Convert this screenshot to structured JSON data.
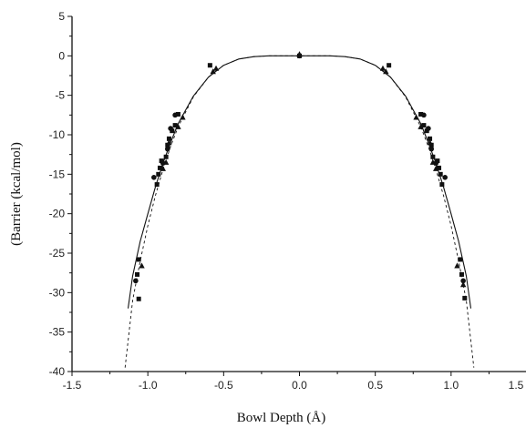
{
  "chart_data": {
    "type": "scatter",
    "title": "",
    "xlabel": "Bowl Depth (Å)",
    "ylabel": "(Barrier (kcal/mol)",
    "xlim": [
      -1.5,
      1.5
    ],
    "ylim": [
      -40,
      5
    ],
    "xticks": [
      -1.5,
      -1.0,
      -0.5,
      0.0,
      0.5,
      1.0,
      1.5
    ],
    "yticks": [
      5,
      0,
      -5,
      -10,
      -15,
      -20,
      -25,
      -30,
      -35,
      -40
    ],
    "xtick_labels": [
      "-1.5",
      "-1.0",
      "-0.5",
      "0.0",
      "0.5",
      "1.0",
      "1.5"
    ],
    "ytick_labels": [
      "5",
      "0",
      "-5",
      "-10",
      "-15",
      "-20",
      "-25",
      "-30",
      "-35",
      "-40"
    ],
    "grid": false,
    "legend": null,
    "series": [
      {
        "marker": "square",
        "points": [
          [
            -1.06,
            -30.8
          ],
          [
            -1.07,
            -27.7
          ],
          [
            -1.06,
            -25.8
          ],
          [
            -0.94,
            -16.3
          ],
          [
            -0.93,
            -15.0
          ],
          [
            -0.92,
            -14.2
          ],
          [
            -0.91,
            -13.3
          ],
          [
            -0.88,
            -12.8
          ],
          [
            -0.87,
            -11.3
          ],
          [
            -0.86,
            -10.5
          ],
          [
            -0.84,
            -9.5
          ],
          [
            -0.82,
            -8.8
          ],
          [
            -0.8,
            -7.4
          ],
          [
            -0.59,
            -1.2
          ],
          [
            0.0,
            0.0
          ],
          [
            0.59,
            -1.2
          ],
          [
            0.8,
            -7.4
          ],
          [
            0.82,
            -8.8
          ],
          [
            0.84,
            -9.5
          ],
          [
            0.86,
            -10.5
          ],
          [
            0.87,
            -11.3
          ],
          [
            0.88,
            -12.8
          ],
          [
            0.91,
            -13.3
          ],
          [
            0.92,
            -14.2
          ],
          [
            0.93,
            -15.0
          ],
          [
            0.94,
            -16.3
          ],
          [
            1.06,
            -25.8
          ],
          [
            1.07,
            -27.7
          ],
          [
            1.09,
            -30.7
          ]
        ]
      },
      {
        "marker": "circle",
        "points": [
          [
            -1.08,
            -28.5
          ],
          [
            -0.96,
            -15.4
          ],
          [
            -0.9,
            -13.6
          ],
          [
            -0.87,
            -11.8
          ],
          [
            -0.85,
            -9.2
          ],
          [
            -0.82,
            -7.5
          ],
          [
            0.0,
            0.0
          ],
          [
            0.82,
            -7.5
          ],
          [
            0.85,
            -9.2
          ],
          [
            0.87,
            -11.8
          ],
          [
            0.9,
            -13.6
          ],
          [
            0.96,
            -15.4
          ],
          [
            1.08,
            -28.5
          ]
        ]
      },
      {
        "marker": "triangle",
        "points": [
          [
            -1.04,
            -26.6
          ],
          [
            -0.9,
            -14.3
          ],
          [
            -0.88,
            -13.5
          ],
          [
            -0.86,
            -11.0
          ],
          [
            -0.8,
            -9.0
          ],
          [
            -0.77,
            -7.8
          ],
          [
            -0.57,
            -2.0
          ],
          [
            -0.55,
            -1.6
          ],
          [
            0.0,
            0.2
          ],
          [
            0.55,
            -1.6
          ],
          [
            0.57,
            -2.0
          ],
          [
            0.77,
            -7.8
          ],
          [
            0.8,
            -9.0
          ],
          [
            0.86,
            -11.0
          ],
          [
            0.88,
            -13.5
          ],
          [
            0.9,
            -14.3
          ],
          [
            1.04,
            -26.6
          ],
          [
            1.08,
            -29.0
          ]
        ]
      }
    ],
    "fits": [
      {
        "style": "solid",
        "x_range": [
          -1.13,
          1.13
        ],
        "points": [
          [
            -1.13,
            -32
          ],
          [
            -1.1,
            -27.9
          ],
          [
            -1.05,
            -23.5
          ],
          [
            -1.0,
            -20.0
          ],
          [
            -0.95,
            -16.6
          ],
          [
            -0.9,
            -13.6
          ],
          [
            -0.85,
            -11.0
          ],
          [
            -0.8,
            -8.6
          ],
          [
            -0.7,
            -5.1
          ],
          [
            -0.6,
            -2.7
          ],
          [
            -0.5,
            -1.2
          ],
          [
            -0.4,
            -0.4
          ],
          [
            -0.3,
            -0.1
          ],
          [
            -0.2,
            0.0
          ],
          [
            0.0,
            0.0
          ],
          [
            0.2,
            0.0
          ],
          [
            0.3,
            -0.1
          ],
          [
            0.4,
            -0.4
          ],
          [
            0.5,
            -1.2
          ],
          [
            0.6,
            -2.7
          ],
          [
            0.7,
            -5.1
          ],
          [
            0.8,
            -8.6
          ],
          [
            0.85,
            -11.0
          ],
          [
            0.9,
            -13.6
          ],
          [
            0.95,
            -16.6
          ],
          [
            1.0,
            -20.0
          ],
          [
            1.05,
            -23.5
          ],
          [
            1.1,
            -27.9
          ],
          [
            1.13,
            -32
          ]
        ]
      },
      {
        "style": "dashed",
        "x_range": [
          -1.15,
          1.15
        ],
        "points": [
          [
            -1.15,
            -39.5
          ],
          [
            -1.1,
            -31.0
          ],
          [
            -1.05,
            -26.0
          ],
          [
            -1.0,
            -21.5
          ],
          [
            -0.95,
            -17.7
          ],
          [
            -0.9,
            -14.4
          ],
          [
            -0.85,
            -11.5
          ],
          [
            -0.8,
            -9.0
          ],
          [
            -0.7,
            -5.2
          ],
          [
            -0.6,
            -2.7
          ],
          [
            -0.5,
            -1.2
          ],
          [
            -0.4,
            -0.4
          ],
          [
            -0.3,
            -0.1
          ],
          [
            -0.2,
            0.0
          ],
          [
            0.0,
            0.0
          ],
          [
            0.2,
            0.0
          ],
          [
            0.3,
            -0.1
          ],
          [
            0.4,
            -0.4
          ],
          [
            0.5,
            -1.2
          ],
          [
            0.6,
            -2.7
          ],
          [
            0.7,
            -5.2
          ],
          [
            0.8,
            -9.0
          ],
          [
            0.85,
            -11.5
          ],
          [
            0.9,
            -14.4
          ],
          [
            0.95,
            -17.7
          ],
          [
            1.0,
            -21.5
          ],
          [
            1.05,
            -26.0
          ],
          [
            1.1,
            -31.0
          ],
          [
            1.15,
            -39.5
          ]
        ]
      }
    ],
    "colors": {
      "axis": "#111111",
      "marker": "#111111",
      "curve": "#111111",
      "background": "#ffffff"
    }
  }
}
